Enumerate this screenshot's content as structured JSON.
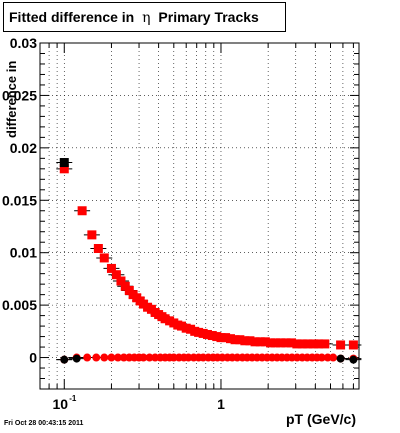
{
  "title": {
    "prefix": "Fitted difference in",
    "symbol": "η",
    "suffix": "Primary Tracks"
  },
  "ylabel": "difference in",
  "xlabel": "pT (GeV/c)",
  "footer": "Fri Oct 28 00:43:15 2011",
  "chart_data": {
    "type": "scatter",
    "title": "Fitted difference in η Primary Tracks",
    "xlabel": "pT (GeV/c)",
    "ylabel": "difference in",
    "xscale": "log",
    "xlim": [
      0.07,
      7.6
    ],
    "ylim": [
      -0.003,
      0.03
    ],
    "grid": true,
    "xticks": [
      {
        "value": 0.1,
        "base": "10",
        "exp": "-1"
      },
      {
        "value": 1,
        "base": "1",
        "exp": ""
      }
    ],
    "yticks": [
      {
        "value": 0,
        "label": "0"
      },
      {
        "value": 0.005,
        "label": "0.005"
      },
      {
        "value": 0.01,
        "label": "0.01"
      },
      {
        "value": 0.015,
        "label": "0.015"
      },
      {
        "value": 0.02,
        "label": "0.02"
      },
      {
        "value": 0.025,
        "label": "0.025"
      },
      {
        "value": 0.03,
        "label": "0.03"
      }
    ],
    "series": [
      {
        "color": "#ff0000",
        "marker": "square",
        "x": [
          0.1,
          0.13,
          0.15,
          0.165,
          0.18,
          0.2,
          0.215,
          0.23,
          0.245,
          0.26,
          0.275,
          0.29,
          0.305,
          0.32,
          0.34,
          0.36,
          0.38,
          0.4,
          0.42,
          0.44,
          0.47,
          0.5,
          0.53,
          0.56,
          0.6,
          0.64,
          0.68,
          0.72,
          0.77,
          0.82,
          0.88,
          0.94,
          1.0,
          1.07,
          1.15,
          1.23,
          1.32,
          1.42,
          1.53,
          1.65,
          1.78,
          1.92,
          2.07,
          2.23,
          2.4,
          2.6,
          2.82,
          3.05,
          3.3,
          3.58,
          3.9,
          4.2,
          4.6,
          5.8,
          7.0
        ],
        "y": [
          0.018,
          0.014,
          0.0117,
          0.0104,
          0.0095,
          0.0085,
          0.0079,
          0.0073,
          0.0068,
          0.0064,
          0.006,
          0.0057,
          0.0054,
          0.0051,
          0.0048,
          0.0046,
          0.0043,
          0.0041,
          0.0039,
          0.0037,
          0.0035,
          0.0033,
          0.0031,
          0.003,
          0.0028,
          0.0027,
          0.0025,
          0.0024,
          0.0023,
          0.0022,
          0.0021,
          0.002,
          0.0019,
          0.0019,
          0.0018,
          0.0017,
          0.0017,
          0.0016,
          0.0016,
          0.0015,
          0.0015,
          0.0015,
          0.0014,
          0.0014,
          0.0014,
          0.0014,
          0.0014,
          0.0013,
          0.0013,
          0.0013,
          0.0013,
          0.0013,
          0.0013,
          0.0012,
          0.0012
        ]
      },
      {
        "color": "#000000",
        "marker": "square",
        "x": [
          0.1
        ],
        "y": [
          0.0186
        ]
      },
      {
        "color": "#ff0000",
        "marker": "circle",
        "x": [
          0.1,
          0.12,
          0.14,
          0.16,
          0.18,
          0.2,
          0.22,
          0.24,
          0.26,
          0.28,
          0.3,
          0.32,
          0.35,
          0.38,
          0.41,
          0.44,
          0.47,
          0.5,
          0.54,
          0.58,
          0.62,
          0.67,
          0.72,
          0.77,
          0.83,
          0.89,
          0.95,
          1.02,
          1.1,
          1.18,
          1.27,
          1.37,
          1.47,
          1.58,
          1.7,
          1.83,
          1.97,
          2.12,
          2.28,
          2.45,
          2.64,
          2.84,
          3.06,
          3.3,
          3.55,
          3.82,
          4.1,
          4.4,
          4.8,
          5.2,
          5.8,
          7.0
        ],
        "y": [
          -0.0002,
          0,
          0,
          0,
          0,
          0,
          0,
          0,
          0,
          0,
          0,
          0,
          0,
          0,
          0,
          0,
          0,
          0,
          0,
          0,
          0,
          0,
          0,
          0,
          0,
          0,
          0,
          0,
          0,
          0,
          0,
          0,
          0,
          0,
          0,
          0,
          0,
          0,
          0,
          0,
          0,
          0,
          0,
          0,
          0,
          0,
          0,
          0,
          0,
          0,
          -0.0001,
          -0.0001
        ]
      },
      {
        "color": "#000000",
        "marker": "circle",
        "x": [
          0.1,
          0.12,
          5.8,
          7.0
        ],
        "y": [
          -0.0002,
          -0.0001,
          -0.0001,
          -0.0002
        ]
      }
    ]
  }
}
